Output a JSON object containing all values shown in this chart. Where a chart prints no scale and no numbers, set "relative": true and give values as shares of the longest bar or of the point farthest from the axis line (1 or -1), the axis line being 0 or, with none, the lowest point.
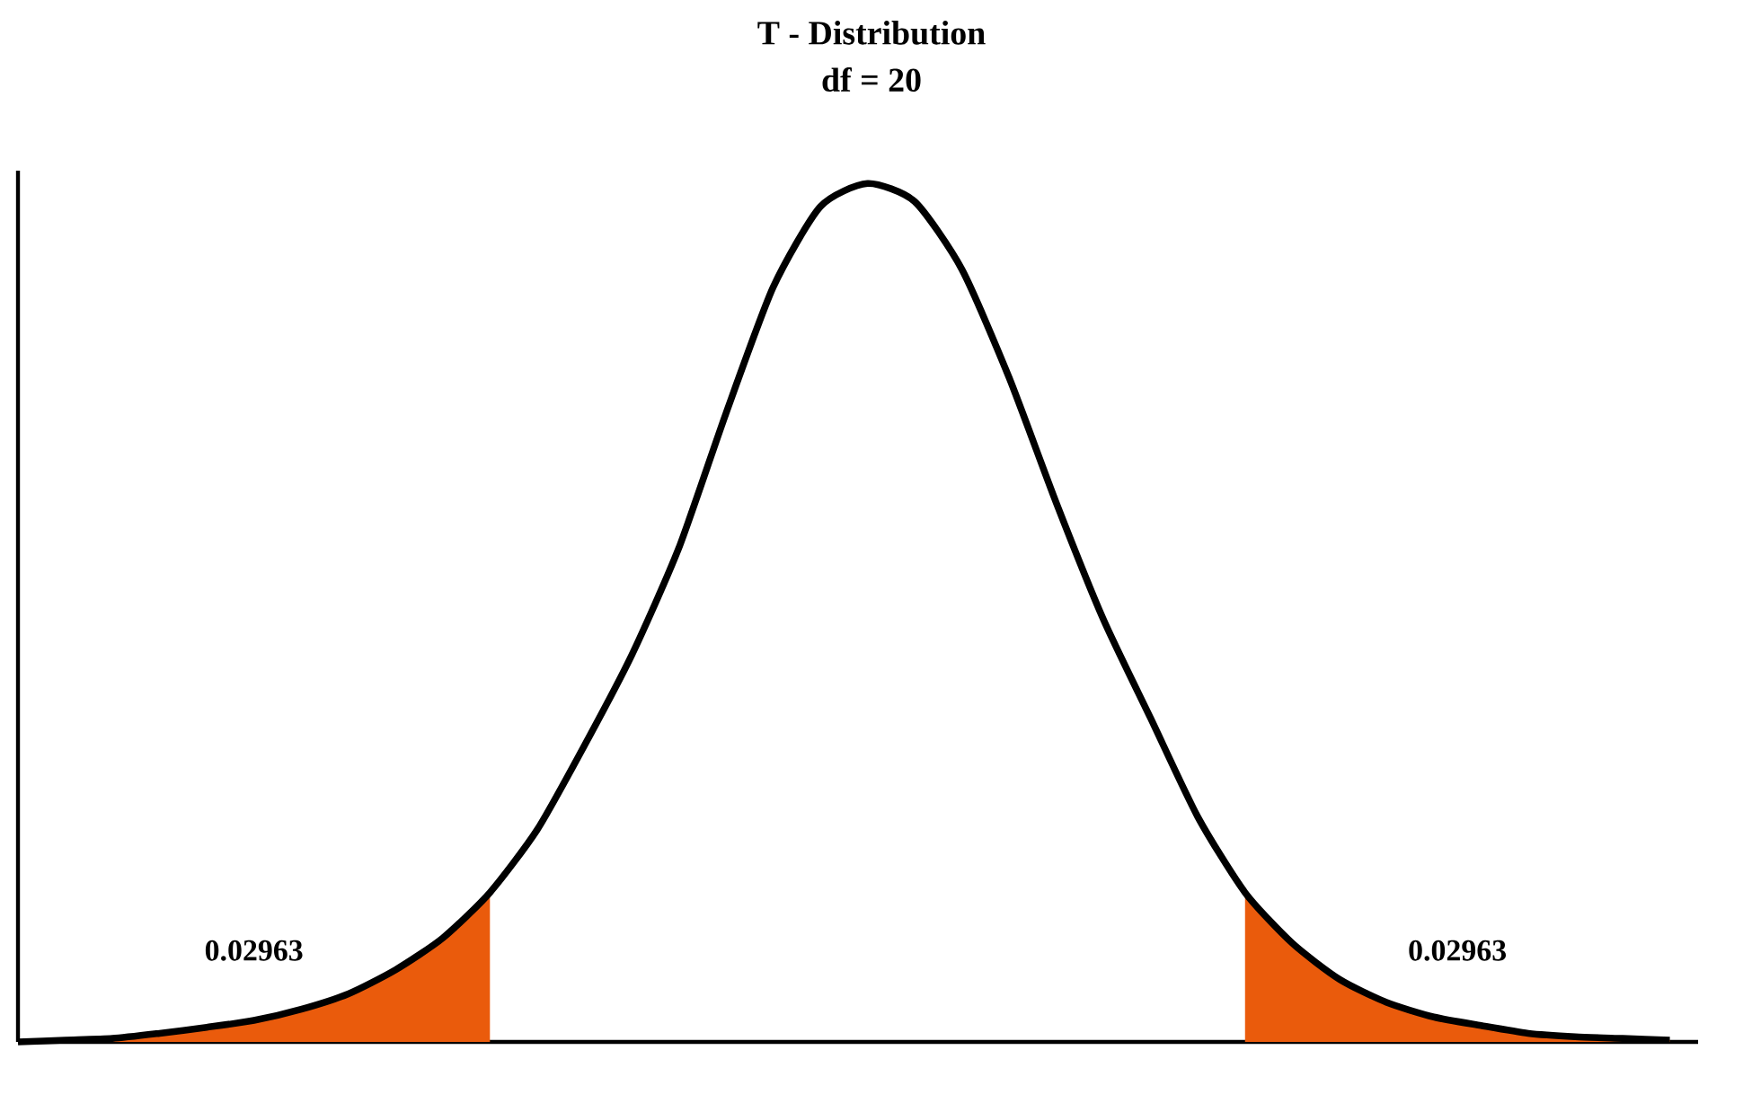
{
  "chart_data": {
    "type": "line",
    "title": "T - Distribution",
    "subtitle": "df = 20",
    "relative": true,
    "categories": [
      null,
      null,
      null,
      null,
      null,
      null,
      null,
      null,
      null,
      null,
      null,
      null,
      null,
      null,
      null,
      null,
      null,
      null,
      null,
      null,
      null,
      null,
      null,
      null,
      null,
      null,
      null,
      null,
      null,
      null,
      null,
      null,
      null,
      null,
      null,
      null
    ],
    "series": [
      {
        "type": "area",
        "color": "#ea5b0c",
        "values": [
          0,
          0.002,
          0.004,
          0.01,
          0.017,
          0.025,
          0.038,
          0.056,
          0.084,
          0.121,
          0.174,
          null,
          null,
          null,
          null,
          null,
          null,
          null,
          null,
          null,
          null,
          null,
          null,
          null,
          null,
          null,
          null,
          null,
          null,
          null,
          null,
          null,
          null,
          null,
          null,
          null
        ]
      },
      {
        "type": "area",
        "color": "#ea5b0c",
        "values": [
          null,
          null,
          null,
          null,
          null,
          null,
          null,
          null,
          null,
          null,
          null,
          null,
          null,
          null,
          null,
          null,
          null,
          null,
          null,
          null,
          null,
          null,
          null,
          null,
          null,
          null,
          0.174,
          0.115,
          0.073,
          0.046,
          0.029,
          0.019,
          0.01,
          0.006,
          0.004,
          0.002
        ]
      },
      {
        "color": "#000000",
        "values": [
          0,
          0.002,
          0.004,
          0.01,
          0.017,
          0.025,
          0.038,
          0.056,
          0.084,
          0.121,
          0.174,
          0.247,
          0.345,
          0.45,
          0.575,
          0.732,
          0.879,
          0.973,
          1,
          0.979,
          0.9,
          0.774,
          0.628,
          0.492,
          0.377,
          0.262,
          0.174,
          0.115,
          0.073,
          0.046,
          0.029,
          0.019,
          0.01,
          0.006,
          0.004,
          0.002
        ]
      }
    ],
    "annotations": [
      "0.02963",
      "0.02963"
    ]
  }
}
